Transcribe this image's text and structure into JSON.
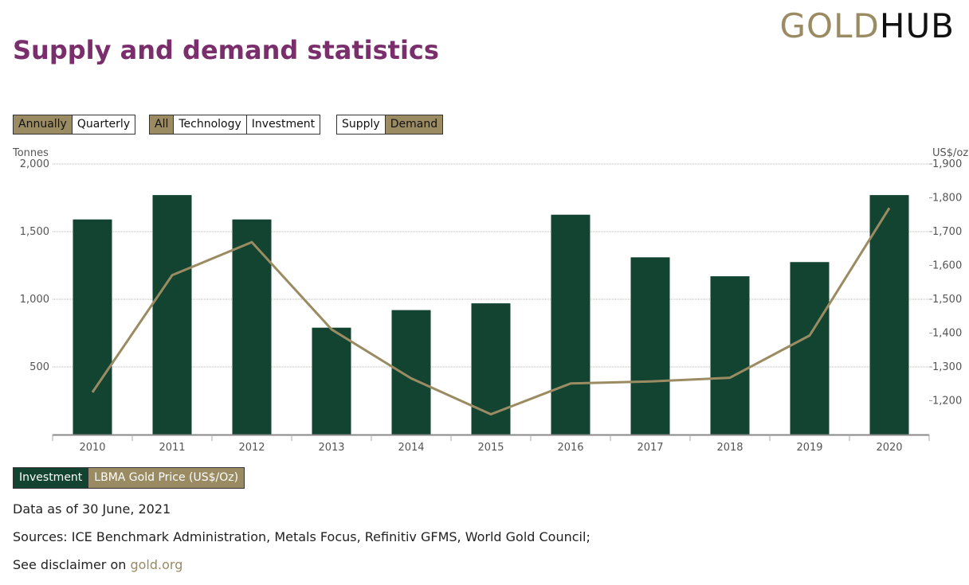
{
  "logo": {
    "part1": "GOLD",
    "part2": "HUB"
  },
  "page_title": "Supply and demand statistics",
  "controls": {
    "period": [
      {
        "label": "Annually",
        "active": true
      },
      {
        "label": "Quarterly",
        "active": false
      }
    ],
    "sector": [
      {
        "label": "All",
        "active": true
      },
      {
        "label": "Technology",
        "active": false
      },
      {
        "label": "Investment",
        "active": false
      }
    ],
    "flow": [
      {
        "label": "Supply",
        "active": false
      },
      {
        "label": "Demand",
        "active": true
      }
    ]
  },
  "legend": [
    {
      "label": "Investment",
      "color": "#134431"
    },
    {
      "label": "LBMA Gold Price (US$/Oz)",
      "color": "#9b8b62"
    }
  ],
  "notes": {
    "date": "Data as of 30 June, 2021",
    "sources": "Sources: ICE Benchmark Administration, Metals Focus, Refinitiv GFMS, World Gold Council;",
    "disclaimer_prefix": "See disclaimer on ",
    "disclaimer_link": "gold.org"
  },
  "chart_data": {
    "type": "bar",
    "categories": [
      "2010",
      "2011",
      "2012",
      "2013",
      "2014",
      "2015",
      "2016",
      "2017",
      "2018",
      "2019",
      "2020"
    ],
    "series": [
      {
        "name": "Investment",
        "type": "bar",
        "axis": "left",
        "color": "#134431",
        "values": [
          1590,
          1770,
          1590,
          790,
          920,
          970,
          1625,
          1310,
          1170,
          1275,
          1770
        ]
      },
      {
        "name": "LBMA Gold Price (US$/Oz)",
        "type": "line",
        "axis": "right",
        "color": "#9b8b62",
        "values": [
          1225,
          1571,
          1669,
          1411,
          1266,
          1160,
          1251,
          1257,
          1268,
          1393,
          1770
        ]
      }
    ],
    "ylabel_left": "Tonnes",
    "ylabel_right": "US$/oz",
    "ylim_left": [
      0,
      2000
    ],
    "yticks_left": [
      "500",
      "1,000",
      "1,500",
      "2,000"
    ],
    "ylim_right": [
      1100,
      1900
    ],
    "yticks_right": [
      "1,200",
      "1,300",
      "1,400",
      "1,500",
      "1,600",
      "1,700",
      "1,800",
      "1,900"
    ],
    "grid": true
  }
}
